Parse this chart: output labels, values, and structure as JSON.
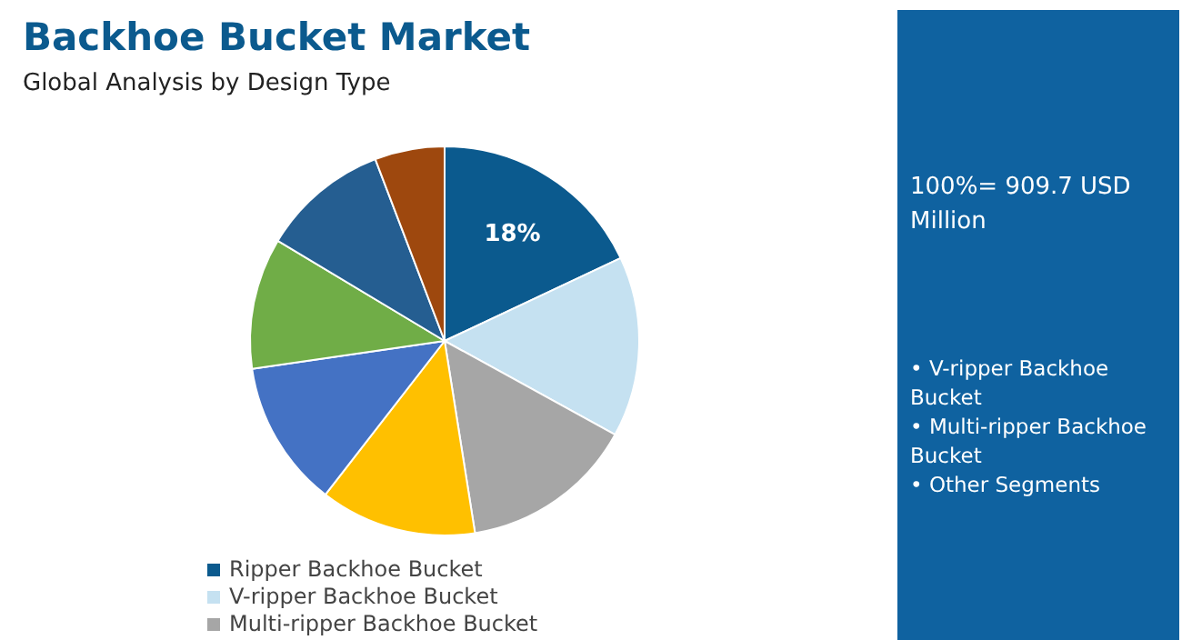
{
  "chart_data": {
    "type": "pie",
    "title": "Backhoe Bucket Market",
    "subtitle": "Global Analysis by Design Type",
    "categories": [
      "Ripper Backhoe Bucket",
      "V-ripper Backhoe Bucket",
      "Multi-ripper Backhoe Bucket",
      null,
      null,
      null,
      null,
      null
    ],
    "values": [
      18,
      15,
      14.5,
      13,
      12.2,
      10.9,
      10.6,
      5.8
    ],
    "colors": [
      "#0b5a8e",
      "#c5e1f1",
      "#a6a6a6",
      "#ffc000",
      "#4472c4",
      "#70ad47",
      "#255e91",
      "#9e480e"
    ],
    "value_labels": [
      "18%",
      null,
      null,
      null,
      null,
      null,
      null,
      null
    ],
    "legend": "bottom",
    "annotations": [
      "100%= 909.7 USD Million",
      "• V-ripper Backhoe Bucket",
      "• Multi-ripper Backhoe Bucket",
      "• Other Segments"
    ]
  }
}
